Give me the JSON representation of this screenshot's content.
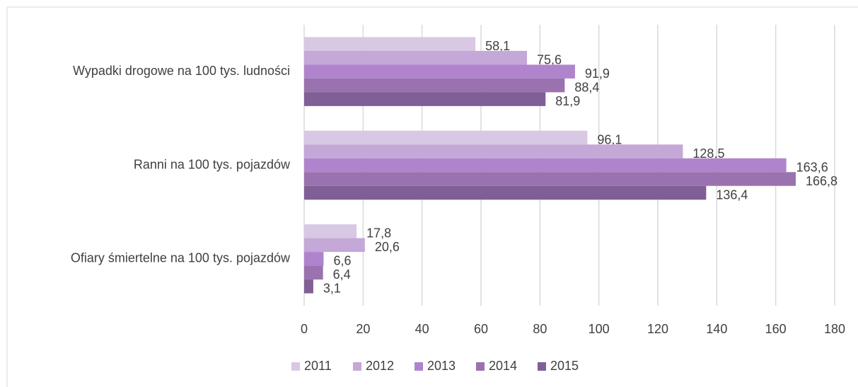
{
  "chart_data": {
    "type": "barh",
    "categories": [
      "Wypadki drogowe na 100 tys. ludności",
      "Ranni na 100 tys. pojazdów",
      "Ofiary śmiertelne na 100 tys. pojazdów"
    ],
    "series": [
      {
        "name": "2011",
        "color": "#d9c8e4",
        "values": [
          58.1,
          96.1,
          17.8
        ],
        "value_labels": [
          "58,1",
          "96,1",
          "17,8"
        ]
      },
      {
        "name": "2012",
        "color": "#c4a8d8",
        "values": [
          75.6,
          128.5,
          20.6
        ],
        "value_labels": [
          "75,6",
          "128,5",
          "20,6"
        ]
      },
      {
        "name": "2013",
        "color": "#b084cc",
        "values": [
          91.9,
          163.6,
          6.6
        ],
        "value_labels": [
          "91,9",
          "163,6",
          "6,6"
        ]
      },
      {
        "name": "2014",
        "color": "#9b72b0",
        "values": [
          88.4,
          166.8,
          6.4
        ],
        "value_labels": [
          "88,4",
          "166,8",
          "6,4"
        ]
      },
      {
        "name": "2015",
        "color": "#7f5f96",
        "values": [
          81.9,
          136.4,
          3.1
        ],
        "value_labels": [
          "81,9",
          "136,4",
          "3,1"
        ]
      }
    ],
    "xlim": [
      0,
      180
    ],
    "xticks": [
      0,
      20,
      40,
      60,
      80,
      100,
      120,
      140,
      160,
      180
    ],
    "grid": true,
    "legend": "bottom"
  }
}
